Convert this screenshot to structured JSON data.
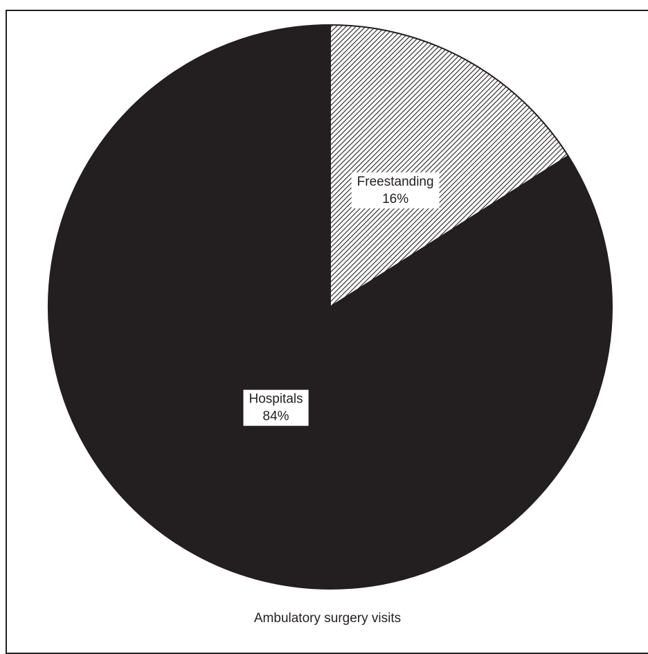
{
  "chart_data": {
    "type": "pie",
    "title": "",
    "caption": "Ambulatory surgery visits",
    "slices": [
      {
        "label": "Freestanding",
        "value": 16,
        "value_label": "16%",
        "fill": "hatch",
        "color": "#231f20"
      },
      {
        "label": "Hospitals",
        "value": 84,
        "value_label": "84%",
        "fill": "solid",
        "color": "#231f20"
      }
    ],
    "start_angle": "12 o'clock",
    "direction": "clockwise",
    "legend": "none (labels on slices)"
  },
  "colors": {
    "ink": "#231f20",
    "background": "#ffffff"
  }
}
